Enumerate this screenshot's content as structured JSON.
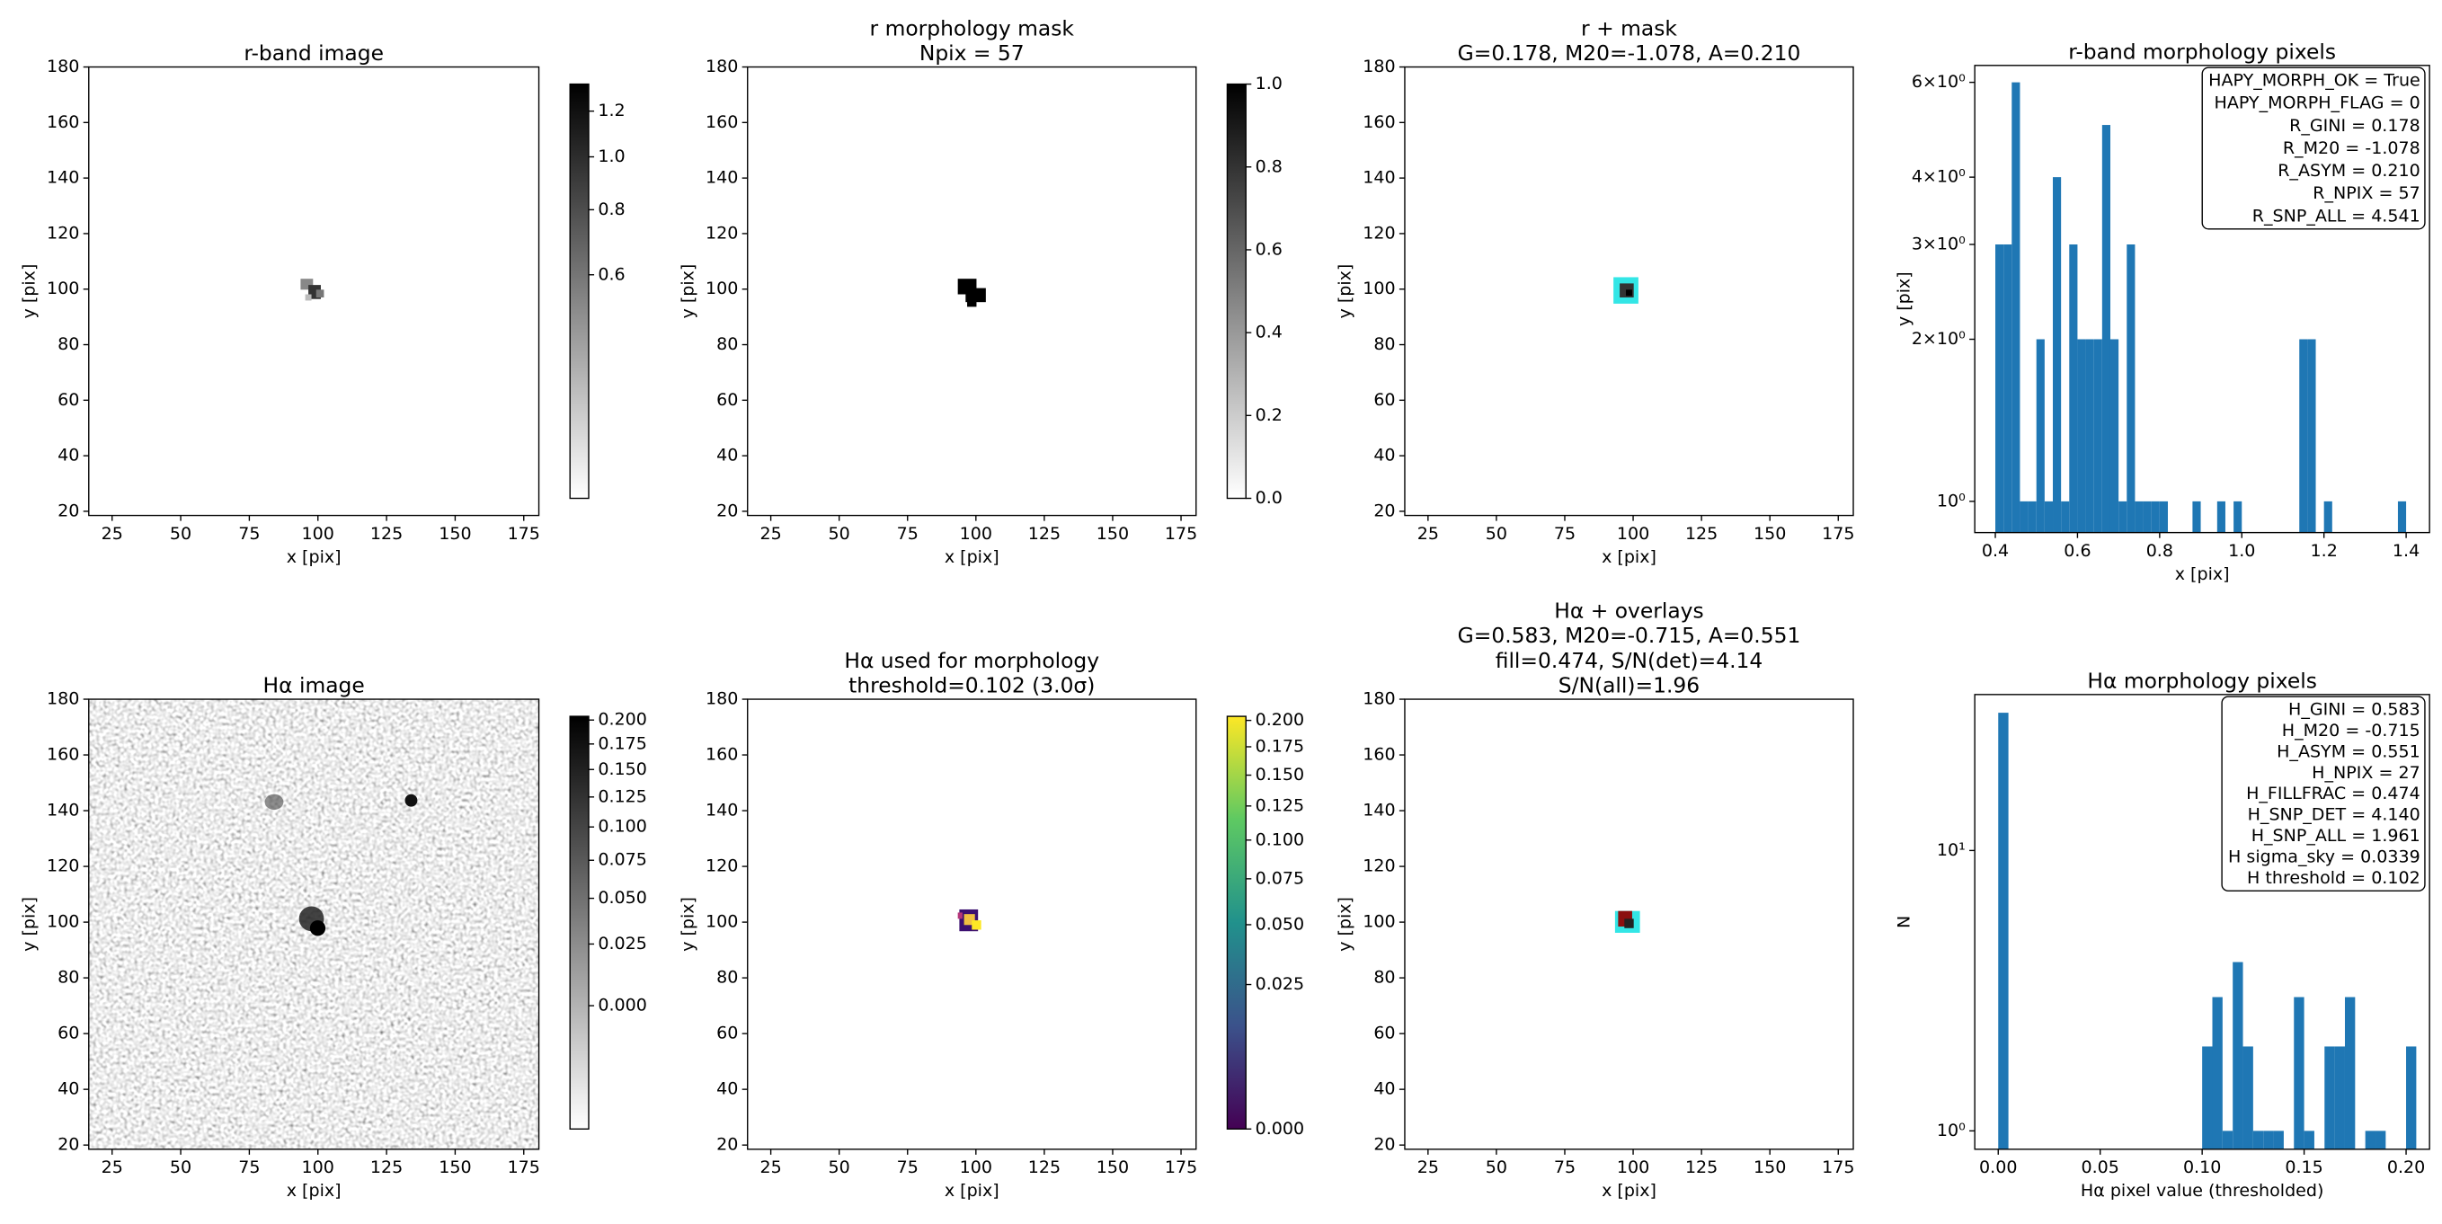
{
  "chart_data": [
    {
      "type": "image",
      "title": [
        "r-band image"
      ],
      "xlabel": "x [pix]",
      "ylabel": "y [pix]",
      "xlim": [
        16.5,
        180.5
      ],
      "ylim": [
        18.5,
        180
      ],
      "xticks": [
        25,
        50,
        75,
        100,
        125,
        150,
        175
      ],
      "yticks": [
        20,
        40,
        60,
        80,
        100,
        120,
        140,
        160,
        180
      ],
      "colorbar": {
        "cmap": "gray_r",
        "norm": "sqrt",
        "clim": [
          0.3,
          1.33
        ],
        "ticks": [
          0.6,
          0.8,
          {
            "value": 1,
            "label": "1.0"
          },
          1.2
        ]
      }
    },
    {
      "type": "image",
      "title": [
        "r morphology mask",
        "Npix = 57"
      ],
      "xlabel": "x [pix]",
      "ylabel": "y [pix]",
      "xlim": [
        16.5,
        180.5
      ],
      "ylim": [
        18.5,
        180
      ],
      "xticks": [
        25,
        50,
        75,
        100,
        125,
        150,
        175
      ],
      "yticks": [
        20,
        40,
        60,
        80,
        100,
        120,
        140,
        160,
        180
      ],
      "colorbar": {
        "cmap": "gray_r",
        "norm": "linear",
        "clim": [
          0,
          1
        ],
        "ticks": [
          {
            "value": 0,
            "label": "0.0"
          },
          0.2,
          0.4,
          0.6,
          0.8,
          {
            "value": 1,
            "label": "1.0"
          }
        ]
      }
    },
    {
      "type": "image",
      "title": [
        "r + mask",
        "G=0.178, M20=-1.078, A=0.210"
      ],
      "xlabel": "x [pix]",
      "ylabel": "y [pix]",
      "xlim": [
        16.5,
        180.5
      ],
      "ylim": [
        18.5,
        180
      ],
      "xticks": [
        25,
        50,
        75,
        100,
        125,
        150,
        175
      ],
      "yticks": [
        20,
        40,
        60,
        80,
        100,
        120,
        140,
        160,
        180
      ]
    },
    {
      "type": "histogram",
      "title": [
        "r-band morphology pixels"
      ],
      "xlabel": "x [pix]",
      "ylabel": "y [pix]",
      "log_y": true,
      "color": "#1f77b4",
      "xlim": [
        0.35,
        1.457
      ],
      "ylim": [
        0.875,
        6.45
      ],
      "xticks": [
        0.4,
        0.6,
        0.8,
        {
          "value": 1,
          "label": "1.0"
        },
        1.2,
        1.4
      ],
      "yticks": [
        {
          "value": 1,
          "label": "10⁰"
        },
        {
          "value": 2,
          "label": "2×10⁰"
        },
        {
          "value": 3,
          "label": "3×10⁰"
        },
        {
          "value": 4,
          "label": "4×10⁰"
        },
        {
          "value": 6,
          "label": "6×10⁰"
        }
      ],
      "bins": [
        0.4,
        0.42,
        0.44,
        0.46,
        0.48,
        0.5,
        0.52,
        0.54,
        0.56,
        0.58,
        0.6,
        0.62,
        0.64,
        0.66,
        0.68,
        0.7,
        0.72,
        0.74,
        0.76,
        0.78,
        0.8,
        0.82,
        0.84,
        0.86,
        0.88,
        0.9,
        0.92,
        0.94,
        0.96,
        0.98,
        1.0,
        1.02,
        1.04,
        1.06,
        1.08,
        1.1,
        1.12,
        1.14,
        1.16,
        1.18,
        1.2,
        1.22,
        1.24,
        1.26,
        1.28,
        1.3,
        1.32,
        1.34,
        1.36,
        1.38,
        1.4
      ],
      "values": [
        3,
        3,
        6,
        1,
        1,
        2,
        1,
        4,
        1,
        3,
        2,
        2,
        2,
        5,
        2,
        1,
        3,
        1,
        1,
        1,
        1,
        0,
        0,
        0,
        1,
        0,
        0,
        1,
        0,
        1,
        0,
        0,
        0,
        0,
        0,
        0,
        0,
        2,
        2,
        0,
        1,
        0,
        0,
        0,
        0,
        0,
        0,
        0,
        0,
        1
      ],
      "annotation": [
        "HAPY_MORPH_OK = True",
        "HAPY_MORPH_FLAG = 0",
        "R_GINI = 0.178",
        "R_M20 = -1.078",
        "R_ASYM = 0.210",
        "R_NPIX = 57",
        "R_SNP_ALL = 4.541"
      ]
    },
    {
      "type": "image",
      "title": [
        "Hα image"
      ],
      "xlabel": "x [pix]",
      "ylabel": "y [pix]",
      "xlim": [
        16.5,
        180.5
      ],
      "ylim": [
        18.5,
        180
      ],
      "xticks": [
        25,
        50,
        75,
        100,
        125,
        150,
        175
      ],
      "yticks": [
        20,
        40,
        60,
        80,
        100,
        120,
        140,
        160,
        180
      ],
      "colorbar": {
        "cmap": "gray_r",
        "norm": "sqrt",
        "clim": [
          -0.02,
          0.204
        ],
        "ticks": [
          {
            "value": 0,
            "label": "0.000"
          },
          0.025,
          {
            "value": 0.05,
            "label": "0.050"
          },
          0.075,
          {
            "value": 0.1,
            "label": "0.100"
          },
          0.125,
          {
            "value": 0.15,
            "label": "0.150"
          },
          0.175,
          {
            "value": 0.2,
            "label": "0.200"
          }
        ]
      }
    },
    {
      "type": "image",
      "title": [
        "Hα used for morphology",
        "threshold=0.102 (3.0σ)"
      ],
      "xlabel": "x [pix]",
      "ylabel": "y [pix]",
      "xlim": [
        16.5,
        180.5
      ],
      "ylim": [
        18.5,
        180
      ],
      "xticks": [
        25,
        50,
        75,
        100,
        125,
        150,
        175
      ],
      "yticks": [
        20,
        40,
        60,
        80,
        100,
        120,
        140,
        160,
        180
      ],
      "colorbar": {
        "cmap": "viridis",
        "norm": "sqrt",
        "clim": [
          0,
          0.204
        ],
        "ticks": [
          {
            "value": 0,
            "label": "0.000"
          },
          0.025,
          {
            "value": 0.05,
            "label": "0.050"
          },
          0.075,
          {
            "value": 0.1,
            "label": "0.100"
          },
          0.125,
          {
            "value": 0.15,
            "label": "0.150"
          },
          0.175,
          {
            "value": 0.2,
            "label": "0.200"
          }
        ]
      }
    },
    {
      "type": "image",
      "title": [
        "Hα + overlays",
        "G=0.583, M20=-0.715, A=0.551",
        "fill=0.474, S/N(det)=4.14",
        "S/N(all)=1.96"
      ],
      "xlabel": "x [pix]",
      "ylabel": "y [pix]",
      "xlim": [
        16.5,
        180.5
      ],
      "ylim": [
        18.5,
        180
      ],
      "xticks": [
        25,
        50,
        75,
        100,
        125,
        150,
        175
      ],
      "yticks": [
        20,
        40,
        60,
        80,
        100,
        120,
        140,
        160,
        180
      ]
    },
    {
      "type": "histogram",
      "title": [
        "Hα morphology pixels"
      ],
      "xlabel": "Hα pixel value (thresholded)",
      "ylabel": "N",
      "log_y": true,
      "color": "#1f77b4",
      "xlim": [
        -0.0115,
        0.2115
      ],
      "ylim": [
        0.86,
        36
      ],
      "xticks": [
        {
          "value": 0,
          "label": "0.00"
        },
        {
          "value": 0.05,
          "label": "0.05"
        },
        {
          "value": 0.1,
          "label": "0.10"
        },
        {
          "value": 0.15,
          "label": "0.15"
        },
        {
          "value": 0.2,
          "label": "0.20"
        }
      ],
      "yticks": [
        {
          "value": 1,
          "label": "10⁰"
        },
        {
          "value": 10,
          "label": "10¹"
        }
      ],
      "bins": [
        0,
        0.005,
        0.01,
        0.015,
        0.02,
        0.025,
        0.03,
        0.035,
        0.04,
        0.045,
        0.05,
        0.055,
        0.06,
        0.065,
        0.07,
        0.075,
        0.08,
        0.085,
        0.09,
        0.095,
        0.1,
        0.105,
        0.11,
        0.115,
        0.12,
        0.125,
        0.13,
        0.135,
        0.14,
        0.145,
        0.15,
        0.155,
        0.16,
        0.165,
        0.17,
        0.175,
        0.18,
        0.185,
        0.19,
        0.195,
        0.2,
        0.205
      ],
      "values": [
        31,
        0,
        0,
        0,
        0,
        0,
        0,
        0,
        0,
        0,
        0,
        0,
        0,
        0,
        0,
        0,
        0,
        0,
        0,
        0,
        2,
        3,
        1,
        4,
        2,
        1,
        1,
        1,
        0,
        3,
        1,
        0,
        2,
        2,
        3,
        0,
        1,
        1,
        0,
        0,
        2
      ],
      "annotation": [
        "H_GINI = 0.583",
        "H_M20 = -0.715",
        "H_ASYM = 0.551",
        "H_NPIX = 27",
        "H_FILLFRAC = 0.474",
        "H_SNP_DET = 4.140",
        "H_SNP_ALL = 1.961",
        "H sigma_sky = 0.0339",
        "H threshold = 0.102"
      ]
    }
  ]
}
